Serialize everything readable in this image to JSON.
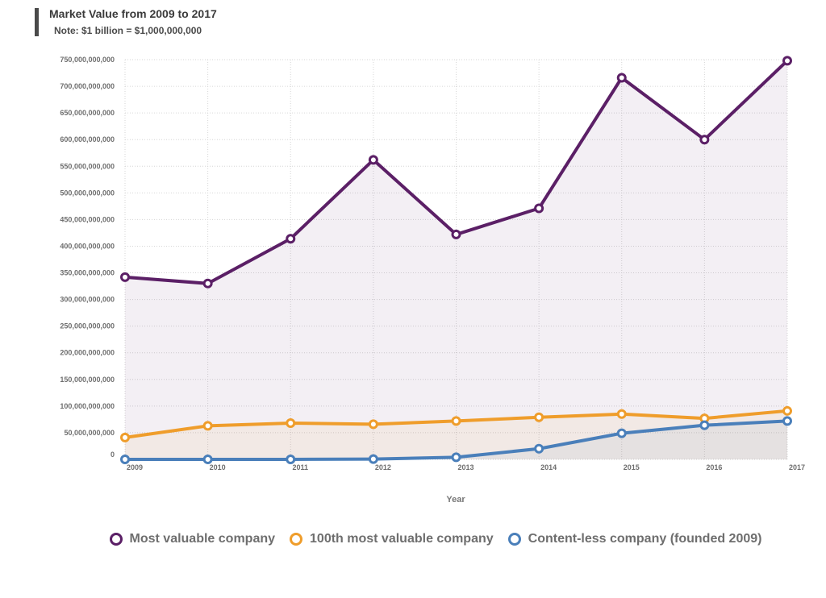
{
  "header": {
    "title": "Market Value from 2009 to 2017",
    "subtitle": "Note: $1 billion = $1,000,000,000"
  },
  "chart_data": {
    "type": "line",
    "title": "Market Value from 2009 to 2017",
    "subtitle": "Note: $1 billion = $1,000,000,000",
    "xlabel": "Year",
    "ylabel": "",
    "categories": [
      "2009",
      "2010",
      "2011",
      "2012",
      "2013",
      "2014",
      "2015",
      "2016",
      "2017"
    ],
    "ylim": [
      0,
      750000000000
    ],
    "yticks": [
      0,
      50000000000,
      100000000000,
      150000000000,
      200000000000,
      250000000000,
      300000000000,
      350000000000,
      400000000000,
      450000000000,
      500000000000,
      550000000000,
      600000000000,
      650000000000,
      700000000000,
      750000000000
    ],
    "ytick_labels": [
      "0",
      "50,000,000,000",
      "100,000,000,000",
      "150,000,000,000",
      "200,000,000,000",
      "250,000,000,000",
      "300,000,000,000",
      "350,000,000,000",
      "400,000,000,000",
      "450,000,000,000",
      "500,000,000,000",
      "550,000,000,000",
      "600,000,000,000",
      "650,000,000,000",
      "700,000,000,000",
      "750,000,000,000"
    ],
    "grid": true,
    "legend_position": "bottom-center",
    "series": [
      {
        "name": "Most valuable company",
        "color": "#5b1f66",
        "values": [
          342000000000,
          330000000000,
          414000000000,
          562000000000,
          422000000000,
          471000000000,
          716000000000,
          600000000000,
          748000000000
        ]
      },
      {
        "name": "100th most valuable company",
        "color": "#ef9d2b",
        "values": [
          41000000000,
          63000000000,
          68000000000,
          66000000000,
          72000000000,
          79000000000,
          85000000000,
          77000000000,
          91000000000
        ]
      },
      {
        "name": "Content-less company (founded 2009)",
        "color": "#4a7fba",
        "values": [
          0,
          0,
          0,
          500000000,
          4000000000,
          20000000000,
          49000000000,
          64000000000,
          72000000000
        ]
      }
    ]
  }
}
